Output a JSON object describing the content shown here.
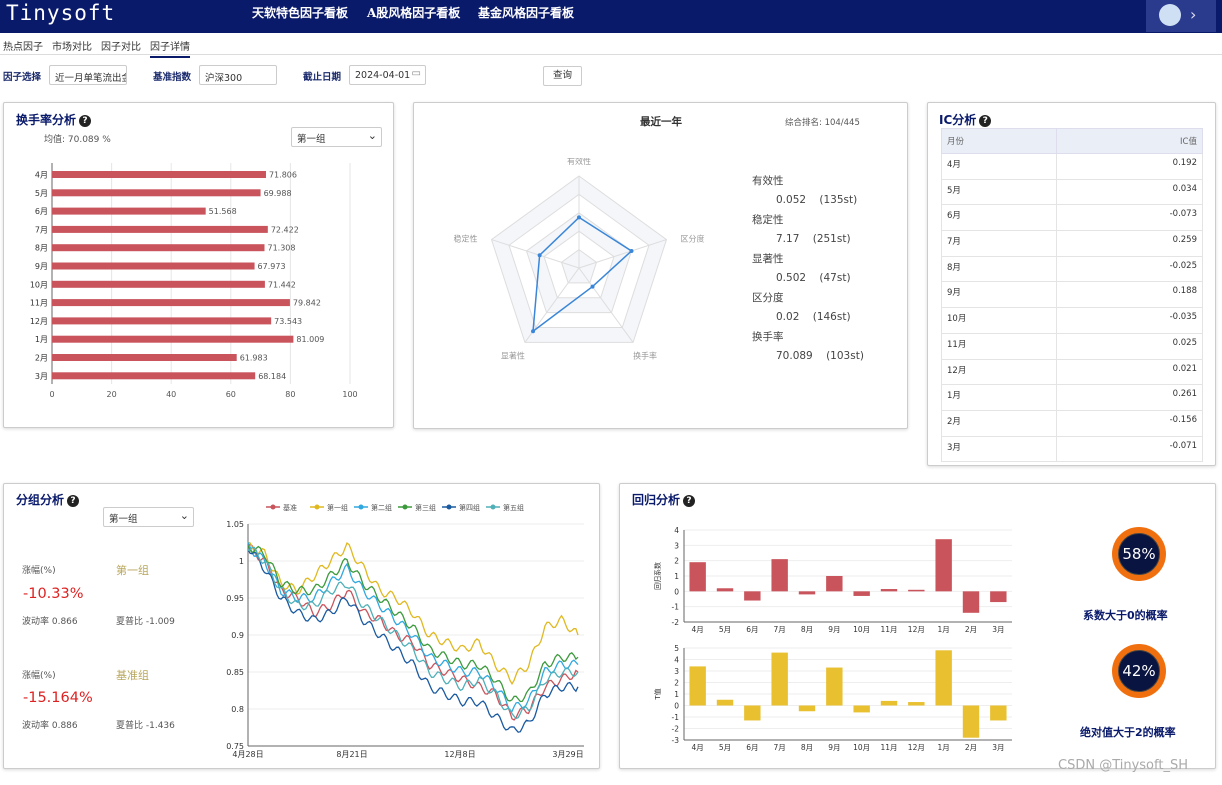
{
  "header": {
    "logo": "Tinysoft",
    "tabs": [
      "天软特色因子看板",
      "A股风格因子看板",
      "基金风格因子看板"
    ]
  },
  "subnav": [
    "热点因子",
    "市场对比",
    "因子对比",
    "因子详情"
  ],
  "filters": {
    "factor_label": "因子选择",
    "factor_value": "近一月单笔流出金额占比",
    "index_label": "基准指数",
    "index_value": "沪深300",
    "date_label": "截止日期",
    "date_value": "2024-04-01",
    "query_button": "查询"
  },
  "turnover": {
    "title": "换手率分析",
    "mean_label": "均值: 70.089 %",
    "group_select": "第一组"
  },
  "radar": {
    "title": "最近一年",
    "rank": "综合排名: 104/445",
    "axes": [
      "有效性",
      "区分度",
      "换手率",
      "显著性",
      "稳定性"
    ],
    "metrics": [
      {
        "name": "有效性",
        "value": "0.052",
        "rank": "(135st)"
      },
      {
        "name": "稳定性",
        "value": "7.17",
        "rank": "(251st)"
      },
      {
        "name": "显著性",
        "value": "0.502",
        "rank": "(47st)"
      },
      {
        "name": "区分度",
        "value": "0.02",
        "rank": "(146st)"
      },
      {
        "name": "换手率",
        "value": "70.089",
        "rank": "(103st)"
      }
    ]
  },
  "ic": {
    "title": "IC分析",
    "col_month": "月份",
    "col_value": "IC值",
    "rows": [
      [
        "4月",
        "0.192"
      ],
      [
        "5月",
        "0.034"
      ],
      [
        "6月",
        "-0.073"
      ],
      [
        "7月",
        "0.259"
      ],
      [
        "8月",
        "-0.025"
      ],
      [
        "9月",
        "0.188"
      ],
      [
        "10月",
        "-0.035"
      ],
      [
        "11月",
        "0.025"
      ],
      [
        "12月",
        "0.021"
      ],
      [
        "1月",
        "0.261"
      ],
      [
        "2月",
        "-0.156"
      ],
      [
        "3月",
        "-0.071"
      ]
    ]
  },
  "group": {
    "title": "分组分析",
    "select": "第一组",
    "g1": {
      "rise_label": "涨幅(%)",
      "rise": "-10.33%",
      "name": "第一组",
      "vol": "波动率 0.866",
      "sharpe": "夏普比 -1.009"
    },
    "g2": {
      "rise_label": "涨幅(%)",
      "rise": "-15.164%",
      "name": "基准组",
      "vol": "波动率 0.886",
      "sharpe": "夏普比 -1.436"
    }
  },
  "regression": {
    "title": "回归分析",
    "coef_label": "回归系数",
    "t_label": "T值",
    "prob1": "58%",
    "prob1_label": "系数大于0的概率",
    "prob2": "42%",
    "prob2_label": "绝对值大于2的概率"
  },
  "watermark": "CSDN @Tinysoft_SH",
  "colors": {
    "navy": "#0a1a6b",
    "bar_red": "#c9545c",
    "bar_yellow": "#e8c030",
    "radar_blue": "#3a86d8",
    "gauge_orange": "#f07010"
  },
  "chart_data": [
    {
      "type": "bar",
      "id": "turnover",
      "categories": [
        "4月",
        "5月",
        "6月",
        "7月",
        "8月",
        "9月",
        "10月",
        "11月",
        "12月",
        "1月",
        "2月",
        "3月"
      ],
      "values": [
        71.806,
        69.988,
        51.568,
        72.422,
        71.308,
        67.973,
        71.442,
        79.842,
        73.543,
        81.009,
        61.983,
        68.184
      ],
      "xlim": [
        0,
        100
      ],
      "ticks": [
        0,
        20,
        40,
        60,
        80,
        100
      ]
    },
    {
      "type": "radar",
      "id": "radar",
      "axes": [
        "有效性",
        "区分度",
        "换手率",
        "显著性",
        "稳定性"
      ],
      "values": [
        0.55,
        0.6,
        0.25,
        0.85,
        0.45
      ]
    },
    {
      "type": "line",
      "id": "group",
      "x_ticks": [
        "4月28日",
        "8月21日",
        "12月8日",
        "3月29日"
      ],
      "ylim": [
        0.75,
        1.05
      ],
      "y_ticks": [
        0.75,
        0.8,
        0.85,
        0.9,
        0.95,
        1,
        1.05
      ],
      "series": [
        {
          "name": "基准",
          "color": "#c9545c",
          "values": [
            1.02,
            1.0,
            0.96,
            0.95,
            0.93,
            0.94,
            0.96,
            0.93,
            0.92,
            0.9,
            0.89,
            0.86,
            0.85,
            0.84,
            0.83,
            0.82,
            0.79,
            0.8,
            0.83,
            0.84,
            0.85
          ]
        },
        {
          "name": "第一组",
          "color": "#e0b820",
          "values": [
            1.02,
            1.01,
            0.97,
            0.96,
            0.98,
            1.0,
            1.02,
            0.99,
            0.96,
            0.95,
            0.93,
            0.9,
            0.89,
            0.88,
            0.89,
            0.86,
            0.84,
            0.86,
            0.91,
            0.92,
            0.9
          ]
        },
        {
          "name": "第二组",
          "color": "#30a8e0",
          "values": [
            1.02,
            1.0,
            0.96,
            0.95,
            0.95,
            0.97,
            0.99,
            0.96,
            0.94,
            0.92,
            0.9,
            0.87,
            0.86,
            0.85,
            0.85,
            0.83,
            0.8,
            0.81,
            0.85,
            0.86,
            0.86
          ]
        },
        {
          "name": "第三组",
          "color": "#3c9a3c",
          "values": [
            1.02,
            1.01,
            0.97,
            0.96,
            0.96,
            0.98,
            1.0,
            0.97,
            0.95,
            0.93,
            0.91,
            0.88,
            0.87,
            0.86,
            0.86,
            0.84,
            0.81,
            0.82,
            0.86,
            0.87,
            0.87
          ]
        },
        {
          "name": "第四组",
          "color": "#1a5aa0",
          "values": [
            1.02,
            0.99,
            0.95,
            0.93,
            0.92,
            0.93,
            0.95,
            0.92,
            0.9,
            0.88,
            0.86,
            0.83,
            0.82,
            0.81,
            0.81,
            0.79,
            0.77,
            0.78,
            0.82,
            0.83,
            0.83
          ]
        },
        {
          "name": "第五组",
          "color": "#50b0b8",
          "values": [
            1.02,
            1.0,
            0.96,
            0.94,
            0.94,
            0.96,
            0.97,
            0.94,
            0.92,
            0.9,
            0.88,
            0.85,
            0.84,
            0.83,
            0.84,
            0.82,
            0.79,
            0.8,
            0.84,
            0.85,
            0.85
          ]
        }
      ]
    },
    {
      "type": "bar",
      "id": "coef",
      "categories": [
        "4月",
        "5月",
        "6月",
        "7月",
        "8月",
        "9月",
        "10月",
        "11月",
        "12月",
        "1月",
        "2月",
        "3月"
      ],
      "values": [
        1.9,
        0.2,
        -0.6,
        2.1,
        -0.2,
        1.0,
        -0.3,
        0.15,
        0.1,
        3.4,
        -1.4,
        -0.7
      ],
      "ylim": [
        -2,
        4
      ],
      "ticks": [
        -2,
        -1,
        0,
        1,
        2,
        3,
        4
      ]
    },
    {
      "type": "bar",
      "id": "tval",
      "categories": [
        "4月",
        "5月",
        "6月",
        "7月",
        "8月",
        "9月",
        "10月",
        "11月",
        "12月",
        "1月",
        "2月",
        "3月"
      ],
      "values": [
        3.4,
        0.5,
        -1.3,
        4.6,
        -0.5,
        3.3,
        -0.6,
        0.4,
        0.3,
        4.8,
        -2.8,
        -1.3
      ],
      "ylim": [
        -3,
        5
      ],
      "ticks": [
        -3,
        -2,
        -1,
        0,
        1,
        2,
        3,
        4,
        5
      ]
    }
  ]
}
